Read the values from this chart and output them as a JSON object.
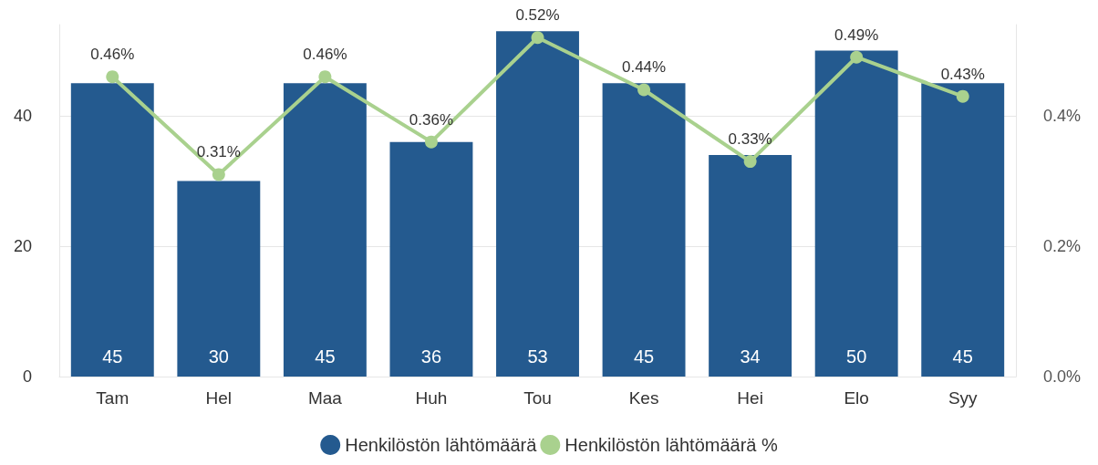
{
  "chart_data": {
    "type": "bar",
    "categories": [
      "Tam",
      "Hel",
      "Maa",
      "Huh",
      "Tou",
      "Kes",
      "Hei",
      "Elo",
      "Syy"
    ],
    "series": [
      {
        "name": "Henkilöstön lähtömäärä",
        "color": "#245a8f",
        "values": [
          45,
          30,
          45,
          36,
          53,
          45,
          34,
          50,
          45
        ],
        "value_labels": [
          "45",
          "30",
          "45",
          "36",
          "53",
          "45",
          "34",
          "50",
          "45"
        ]
      },
      {
        "name": "Henkilöstön lähtömäärä %",
        "type": "line",
        "axis": "y2",
        "color": "#a9d18e",
        "values": [
          0.46,
          0.31,
          0.46,
          0.36,
          0.52,
          0.44,
          0.33,
          0.49,
          0.43
        ],
        "value_labels": [
          "0.46%",
          "0.31%",
          "0.46%",
          "0.36%",
          "0.52%",
          "0.44%",
          "0.33%",
          "0.49%",
          "0.43%"
        ]
      }
    ],
    "ylim": [
      0,
      54
    ],
    "yticks": [
      0,
      20,
      40
    ],
    "y2lim": [
      0,
      0.54
    ],
    "y2ticks": [
      {
        "value": 0,
        "label": "0.0%"
      },
      {
        "value": 0.2,
        "label": "0.2%"
      },
      {
        "value": 0.4,
        "label": "0.4%"
      }
    ],
    "grid": "y",
    "legend": "bottom",
    "marker": "circle",
    "line_style": "solid"
  }
}
